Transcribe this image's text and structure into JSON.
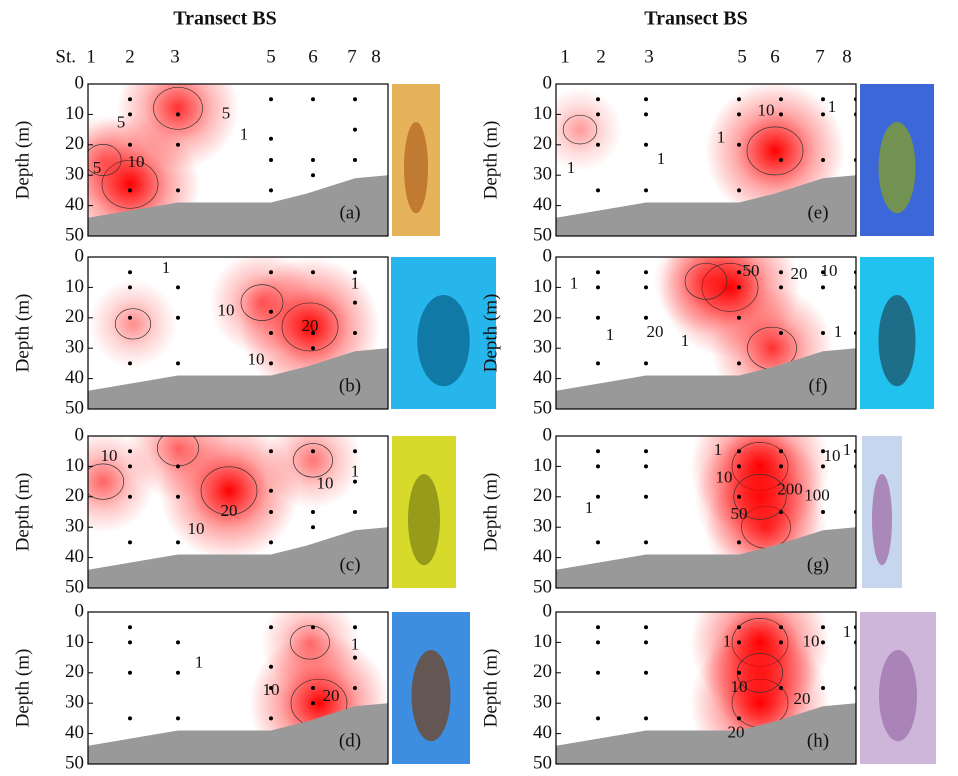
{
  "chart_data": [
    {
      "type": "contour",
      "title": "Transect BS",
      "xlabel": "St.",
      "ylabel": "Depth (m)",
      "panel_label": "(a)",
      "xlim": [
        0,
        100
      ],
      "xticks": [
        {
          "value": 1,
          "label": "1"
        },
        {
          "value": 14,
          "label": "2"
        },
        {
          "value": 29,
          "label": "3"
        },
        {
          "value": 61,
          "label": "5"
        },
        {
          "value": 75,
          "label": "6"
        },
        {
          "value": 88,
          "label": "7"
        },
        {
          "value": 96,
          "label": "8"
        }
      ],
      "ylim": [
        0,
        50
      ],
      "yticks": [
        0,
        10,
        20,
        30,
        40,
        50
      ],
      "samples": {
        "x": [
          14,
          14,
          14,
          14,
          30,
          30,
          30,
          61,
          61,
          61,
          61,
          75,
          75,
          75,
          89,
          89,
          89
        ],
        "y": [
          5,
          10,
          20,
          35,
          10,
          20,
          35,
          5,
          18,
          25,
          35,
          5,
          25,
          30,
          5,
          15,
          25
        ]
      },
      "bottom": {
        "x": [
          0,
          30,
          61,
          73,
          89,
          100
        ],
        "y": [
          44,
          39,
          39,
          36,
          31,
          30
        ]
      },
      "peaks": {
        "x": [
          30,
          14,
          5
        ],
        "y": [
          8,
          33,
          25
        ],
        "values": [
          15,
          20,
          6
        ]
      },
      "color": "#ff0000",
      "contour_labels": [
        {
          "value": 5,
          "x": 46,
          "y": 10
        },
        {
          "value": 5,
          "x": 11,
          "y": 13
        },
        {
          "value": 5,
          "x": 3,
          "y": 28
        },
        {
          "value": 10,
          "x": 16,
          "y": 26
        },
        {
          "value": 1,
          "x": 52,
          "y": 17
        }
      ]
    },
    {
      "type": "contour",
      "ylabel": "Depth (m)",
      "panel_label": "(b)",
      "xlim": [
        0,
        100
      ],
      "ylim": [
        0,
        50
      ],
      "yticks": [
        0,
        10,
        20,
        30,
        40,
        50
      ],
      "samples": {
        "x": [
          14,
          14,
          14,
          14,
          30,
          30,
          30,
          61,
          61,
          61,
          61,
          75,
          75,
          75,
          89,
          89,
          89
        ],
        "y": [
          5,
          10,
          20,
          35,
          10,
          20,
          35,
          5,
          18,
          25,
          35,
          5,
          25,
          30,
          5,
          15,
          25
        ]
      },
      "bottom": {
        "x": [
          0,
          30,
          61,
          73,
          89,
          100
        ],
        "y": [
          44,
          39,
          39,
          36,
          31,
          30
        ]
      },
      "peaks": {
        "x": [
          74,
          58,
          15
        ],
        "y": [
          23,
          15,
          22
        ],
        "values": [
          30,
          15,
          8
        ]
      },
      "color": "#ff0000",
      "contour_labels": [
        {
          "value": 1,
          "x": 26,
          "y": 4
        },
        {
          "value": 10,
          "x": 46,
          "y": 18
        },
        {
          "value": 20,
          "x": 74,
          "y": 23
        },
        {
          "value": 10,
          "x": 56,
          "y": 34
        },
        {
          "value": 1,
          "x": 89,
          "y": 9
        }
      ]
    },
    {
      "type": "contour",
      "ylabel": "Depth (m)",
      "panel_label": "(c)",
      "xlim": [
        0,
        100
      ],
      "ylim": [
        0,
        50
      ],
      "yticks": [
        0,
        10,
        20,
        30,
        40,
        50
      ],
      "samples": {
        "x": [
          14,
          14,
          14,
          14,
          30,
          30,
          30,
          61,
          61,
          61,
          61,
          75,
          75,
          75,
          89,
          89,
          89
        ],
        "y": [
          5,
          10,
          20,
          35,
          10,
          20,
          35,
          5,
          18,
          25,
          35,
          5,
          25,
          30,
          5,
          15,
          25
        ]
      },
      "bottom": {
        "x": [
          0,
          30,
          61,
          73,
          89,
          100
        ],
        "y": [
          44,
          39,
          39,
          36,
          31,
          30
        ]
      },
      "peaks": {
        "x": [
          47,
          30,
          5,
          75
        ],
        "y": [
          18,
          4,
          15,
          8
        ],
        "values": [
          25,
          12,
          12,
          10
        ]
      },
      "color": "#ff0000",
      "contour_labels": [
        {
          "value": 10,
          "x": 7,
          "y": 7
        },
        {
          "value": 20,
          "x": 47,
          "y": 25
        },
        {
          "value": 10,
          "x": 79,
          "y": 16
        },
        {
          "value": 10,
          "x": 36,
          "y": 31
        },
        {
          "value": 1,
          "x": 89,
          "y": 12
        }
      ]
    },
    {
      "type": "contour",
      "ylabel": "Depth (m)",
      "panel_label": "(d)",
      "xlim": [
        0,
        100
      ],
      "ylim": [
        0,
        50
      ],
      "yticks": [
        0,
        10,
        20,
        30,
        40,
        50
      ],
      "samples": {
        "x": [
          14,
          14,
          14,
          14,
          30,
          30,
          30,
          61,
          61,
          61,
          61,
          75,
          75,
          75,
          89,
          89,
          89
        ],
        "y": [
          5,
          10,
          20,
          35,
          10,
          20,
          35,
          5,
          18,
          25,
          35,
          5,
          25,
          30,
          5,
          15,
          25
        ]
      },
      "bottom": {
        "x": [
          0,
          30,
          61,
          73,
          89,
          100
        ],
        "y": [
          44,
          39,
          39,
          36,
          31,
          30
        ]
      },
      "peaks": {
        "x": [
          77,
          74
        ],
        "y": [
          30,
          10
        ],
        "values": [
          30,
          12
        ]
      },
      "color": "#ff0000",
      "contour_labels": [
        {
          "value": 1,
          "x": 37,
          "y": 17
        },
        {
          "value": 10,
          "x": 61,
          "y": 26
        },
        {
          "value": 20,
          "x": 81,
          "y": 28
        },
        {
          "value": 1,
          "x": 89,
          "y": 11
        }
      ]
    },
    {
      "type": "contour",
      "title": "Transect BS",
      "ylabel": "Depth (m)",
      "panel_label": "(e)",
      "xlim": [
        0,
        100
      ],
      "xticks": [
        {
          "value": 3,
          "label": "1"
        },
        {
          "value": 15,
          "label": "2"
        },
        {
          "value": 31,
          "label": "3"
        },
        {
          "value": 62,
          "label": "5"
        },
        {
          "value": 73,
          "label": "6"
        },
        {
          "value": 88,
          "label": "7"
        },
        {
          "value": 97,
          "label": "8"
        }
      ],
      "ylim": [
        0,
        50
      ],
      "yticks": [
        0,
        10,
        20,
        30,
        40,
        50
      ],
      "samples": {
        "x": [
          14,
          14,
          14,
          14,
          30,
          30,
          30,
          30,
          61,
          61,
          61,
          61,
          75,
          75,
          75,
          89,
          89,
          89,
          100,
          100,
          100
        ],
        "y": [
          5,
          10,
          20,
          35,
          5,
          10,
          20,
          35,
          5,
          10,
          20,
          35,
          5,
          10,
          25,
          5,
          10,
          25,
          5,
          10,
          25
        ]
      },
      "bottom": {
        "x": [
          0,
          30,
          61,
          73,
          89,
          100
        ],
        "y": [
          44,
          39,
          39,
          36,
          31,
          30
        ]
      },
      "peaks": {
        "x": [
          73,
          8
        ],
        "y": [
          22,
          15
        ],
        "values": [
          15,
          3
        ]
      },
      "color": "#ff0000",
      "contour_labels": [
        {
          "value": 10,
          "x": 70,
          "y": 9
        },
        {
          "value": 1,
          "x": 35,
          "y": 25
        },
        {
          "value": 1,
          "x": 5,
          "y": 28
        },
        {
          "value": 1,
          "x": 55,
          "y": 18
        },
        {
          "value": 1,
          "x": 92,
          "y": 8
        }
      ]
    },
    {
      "type": "contour",
      "ylabel": "Depth (m)",
      "panel_label": "(f)",
      "xlim": [
        0,
        100
      ],
      "ylim": [
        0,
        50
      ],
      "yticks": [
        0,
        10,
        20,
        30,
        40,
        50
      ],
      "samples": {
        "x": [
          14,
          14,
          14,
          14,
          30,
          30,
          30,
          30,
          61,
          61,
          61,
          61,
          75,
          75,
          75,
          89,
          89,
          89,
          100,
          100,
          100
        ],
        "y": [
          5,
          10,
          20,
          35,
          5,
          10,
          20,
          35,
          5,
          10,
          20,
          35,
          5,
          10,
          25,
          5,
          10,
          25,
          5,
          10,
          25
        ]
      },
      "bottom": {
        "x": [
          0,
          30,
          61,
          73,
          89,
          100
        ],
        "y": [
          44,
          39,
          39,
          36,
          31,
          30
        ]
      },
      "peaks": {
        "x": [
          58,
          72,
          50
        ],
        "y": [
          10,
          30,
          8
        ],
        "values": [
          80,
          60,
          40
        ]
      },
      "color": "#ff0000",
      "contour_labels": [
        {
          "value": 1,
          "x": 6,
          "y": 9
        },
        {
          "value": 50,
          "x": 65,
          "y": 5
        },
        {
          "value": 20,
          "x": 81,
          "y": 6
        },
        {
          "value": 10,
          "x": 91,
          "y": 5
        },
        {
          "value": 20,
          "x": 33,
          "y": 25
        },
        {
          "value": 1,
          "x": 18,
          "y": 26
        },
        {
          "value": 1,
          "x": 43,
          "y": 28
        },
        {
          "value": 1,
          "x": 94,
          "y": 25
        }
      ]
    },
    {
      "type": "contour",
      "ylabel": "Depth (m)",
      "panel_label": "(g)",
      "xlim": [
        0,
        100
      ],
      "ylim": [
        0,
        50
      ],
      "yticks": [
        0,
        10,
        20,
        30,
        40,
        50
      ],
      "samples": {
        "x": [
          14,
          14,
          14,
          14,
          30,
          30,
          30,
          30,
          61,
          61,
          61,
          61,
          75,
          75,
          75,
          89,
          89,
          89,
          100,
          100,
          100
        ],
        "y": [
          5,
          10,
          20,
          35,
          5,
          10,
          20,
          35,
          5,
          10,
          20,
          35,
          5,
          10,
          25,
          5,
          10,
          25,
          5,
          10,
          25
        ]
      },
      "bottom": {
        "x": [
          0,
          30,
          61,
          73,
          89,
          100
        ],
        "y": [
          44,
          39,
          39,
          36,
          31,
          30
        ]
      },
      "peaks": {
        "x": [
          68,
          70,
          68
        ],
        "y": [
          10,
          30,
          20
        ],
        "values": [
          400,
          300,
          350
        ]
      },
      "color": "#ff0000",
      "contour_labels": [
        {
          "value": 1,
          "x": 11,
          "y": 24
        },
        {
          "value": 1,
          "x": 54,
          "y": 5
        },
        {
          "value": 10,
          "x": 56,
          "y": 14
        },
        {
          "value": 50,
          "x": 61,
          "y": 26
        },
        {
          "value": 200,
          "x": 78,
          "y": 18
        },
        {
          "value": 100,
          "x": 87,
          "y": 20
        },
        {
          "value": 10,
          "x": 92,
          "y": 7
        },
        {
          "value": 1,
          "x": 97,
          "y": 5
        }
      ]
    },
    {
      "type": "contour",
      "ylabel": "Depth (m)",
      "panel_label": "(h)",
      "xlim": [
        0,
        100
      ],
      "ylim": [
        0,
        50
      ],
      "yticks": [
        0,
        10,
        20,
        30,
        40,
        50
      ],
      "samples": {
        "x": [
          14,
          14,
          14,
          14,
          30,
          30,
          30,
          30,
          61,
          61,
          61,
          61,
          75,
          75,
          75,
          89,
          89,
          89,
          100,
          100,
          100
        ],
        "y": [
          5,
          10,
          20,
          35,
          5,
          10,
          20,
          35,
          5,
          10,
          20,
          35,
          5,
          10,
          25,
          5,
          10,
          25,
          5,
          10,
          25
        ]
      },
      "bottom": {
        "x": [
          0,
          30,
          61,
          73,
          89,
          100
        ],
        "y": [
          44,
          39,
          39,
          36,
          31,
          30
        ]
      },
      "peaks": {
        "x": [
          68,
          68,
          68
        ],
        "y": [
          10,
          30,
          20
        ],
        "values": [
          40,
          40,
          25
        ]
      },
      "color": "#ff0000",
      "contour_labels": [
        {
          "value": 1,
          "x": 57,
          "y": 10
        },
        {
          "value": 10,
          "x": 61,
          "y": 25
        },
        {
          "value": 20,
          "x": 60,
          "y": 40
        },
        {
          "value": 20,
          "x": 82,
          "y": 29
        },
        {
          "value": 10,
          "x": 85,
          "y": 10
        },
        {
          "value": 1,
          "x": 97,
          "y": 7
        }
      ]
    }
  ]
}
